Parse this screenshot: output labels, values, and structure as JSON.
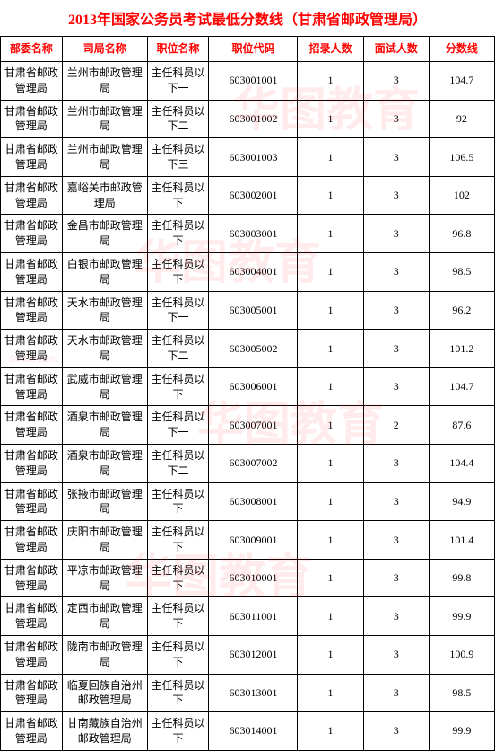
{
  "title": "2013年国家公务员考试最低分数线（甘肃省邮政管理局）",
  "headers": {
    "dept": "部委名称",
    "bureau": "司局名称",
    "pos": "职位名称",
    "code": "职位代码",
    "rec": "招录人数",
    "int": "面试人数",
    "score": "分数线"
  },
  "rows": [
    {
      "dept": "甘肃省邮政管理局",
      "bureau": "兰州市邮政管理局",
      "pos": "主任科员以下一",
      "code": "603001001",
      "rec": "1",
      "int": "3",
      "score": "104.7"
    },
    {
      "dept": "甘肃省邮政管理局",
      "bureau": "兰州市邮政管理局",
      "pos": "主任科员以下二",
      "code": "603001002",
      "rec": "1",
      "int": "3",
      "score": "92"
    },
    {
      "dept": "甘肃省邮政管理局",
      "bureau": "兰州市邮政管理局",
      "pos": "主任科员以下三",
      "code": "603001003",
      "rec": "1",
      "int": "3",
      "score": "106.5"
    },
    {
      "dept": "甘肃省邮政管理局",
      "bureau": "嘉峪关市邮政管理局",
      "pos": "主任科员以下",
      "code": "603002001",
      "rec": "1",
      "int": "3",
      "score": "102"
    },
    {
      "dept": "甘肃省邮政管理局",
      "bureau": "金昌市邮政管理局",
      "pos": "主任科员以下",
      "code": "603003001",
      "rec": "1",
      "int": "3",
      "score": "96.8"
    },
    {
      "dept": "甘肃省邮政管理局",
      "bureau": "白银市邮政管理局",
      "pos": "主任科员以下",
      "code": "603004001",
      "rec": "1",
      "int": "3",
      "score": "98.5"
    },
    {
      "dept": "甘肃省邮政管理局",
      "bureau": "天水市邮政管理局",
      "pos": "主任科员以下一",
      "code": "603005001",
      "rec": "1",
      "int": "3",
      "score": "96.2"
    },
    {
      "dept": "甘肃省邮政管理局",
      "bureau": "天水市邮政管理局",
      "pos": "主任科员以下二",
      "code": "603005002",
      "rec": "1",
      "int": "3",
      "score": "101.2"
    },
    {
      "dept": "甘肃省邮政管理局",
      "bureau": "武威市邮政管理局",
      "pos": "主任科员以下",
      "code": "603006001",
      "rec": "1",
      "int": "3",
      "score": "104.7"
    },
    {
      "dept": "甘肃省邮政管理局",
      "bureau": "酒泉市邮政管理局",
      "pos": "主任科员以下一",
      "code": "603007001",
      "rec": "1",
      "int": "2",
      "score": "87.6"
    },
    {
      "dept": "甘肃省邮政管理局",
      "bureau": "酒泉市邮政管理局",
      "pos": "主任科员以下二",
      "code": "603007002",
      "rec": "1",
      "int": "3",
      "score": "104.4"
    },
    {
      "dept": "甘肃省邮政管理局",
      "bureau": "张掖市邮政管理局",
      "pos": "主任科员以下",
      "code": "603008001",
      "rec": "1",
      "int": "3",
      "score": "94.9"
    },
    {
      "dept": "甘肃省邮政管理局",
      "bureau": "庆阳市邮政管理局",
      "pos": "主任科员以下",
      "code": "603009001",
      "rec": "1",
      "int": "3",
      "score": "101.4"
    },
    {
      "dept": "甘肃省邮政管理局",
      "bureau": "平凉市邮政管理局",
      "pos": "主任科员以下",
      "code": "603010001",
      "rec": "1",
      "int": "3",
      "score": "99.8"
    },
    {
      "dept": "甘肃省邮政管理局",
      "bureau": "定西市邮政管理局",
      "pos": "主任科员以下",
      "code": "603011001",
      "rec": "1",
      "int": "3",
      "score": "99.9"
    },
    {
      "dept": "甘肃省邮政管理局",
      "bureau": "陇南市邮政管理局",
      "pos": "主任科员以下",
      "code": "603012001",
      "rec": "1",
      "int": "3",
      "score": "100.9"
    },
    {
      "dept": "甘肃省邮政管理局",
      "bureau": "临夏回族自治州邮政管理局",
      "pos": "主任科员以下",
      "code": "603013001",
      "rec": "1",
      "int": "3",
      "score": "98.5"
    },
    {
      "dept": "甘肃省邮政管理局",
      "bureau": "甘南藏族自治州邮政管理局",
      "pos": "主任科员以下",
      "code": "603014001",
      "rec": "1",
      "int": "3",
      "score": "99.9"
    }
  ],
  "watermark_text": "华图教育",
  "watermark_small": "SINCE 2001",
  "colors": {
    "header_text": "#ff0000",
    "border": "#000000",
    "watermark": "rgba(255,60,60,0.10)"
  }
}
